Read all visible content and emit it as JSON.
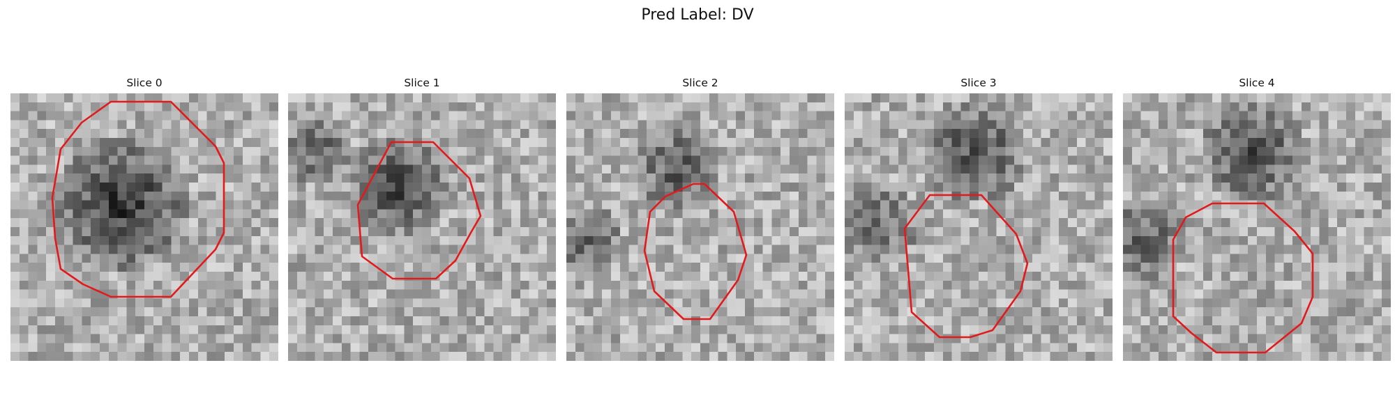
{
  "figure": {
    "title": "Pred Label: DV",
    "outline_color": "#e31a1c",
    "colormap": "grayscale"
  },
  "panels": [
    {
      "title": "Slice 0"
    },
    {
      "title": "Slice 1"
    },
    {
      "title": "Slice 2"
    },
    {
      "title": "Slice 3"
    },
    {
      "title": "Slice 4"
    }
  ]
}
